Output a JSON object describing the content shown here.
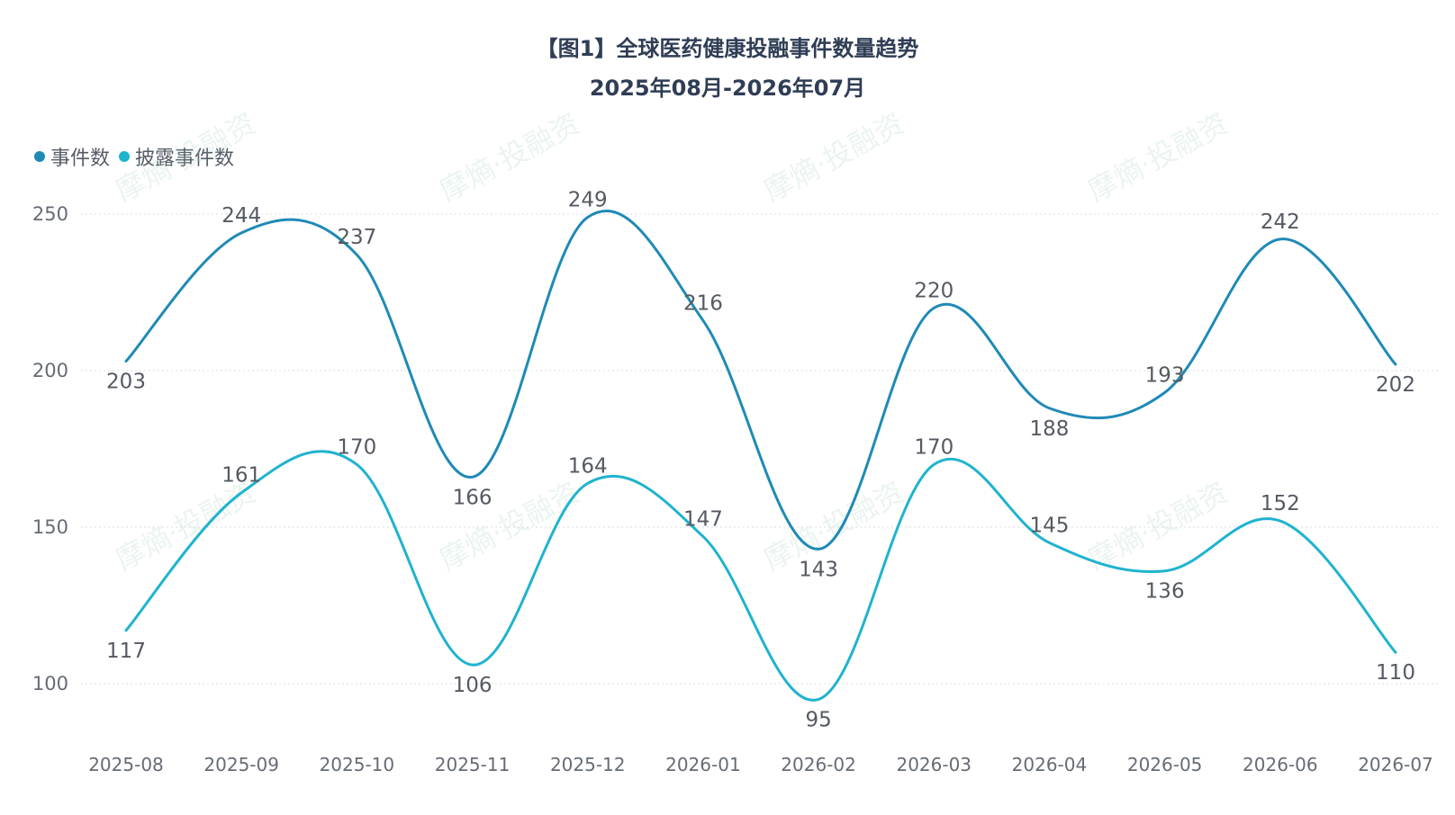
{
  "chart_data": {
    "type": "line",
    "title": "【图1】全球医药健康投融事件数量趋势",
    "subtitle": "2025年08月-2026年07月",
    "xlabel": "",
    "ylabel": "",
    "categories": [
      "2025-08",
      "2025-09",
      "2025-10",
      "2025-11",
      "2025-12",
      "2026-01",
      "2026-02",
      "2026-03",
      "2026-04",
      "2026-05",
      "2026-06",
      "2026-07"
    ],
    "yticks": [
      100,
      150,
      200,
      250
    ],
    "ylim": [
      80,
      260
    ],
    "grid": "horizontal dotted",
    "legend_position": "top-left",
    "series": [
      {
        "name": "事件数",
        "color": "#1f8ab6",
        "values": [
          203,
          244,
          237,
          166,
          249,
          216,
          143,
          220,
          188,
          193,
          242,
          202
        ]
      },
      {
        "name": "披露事件数",
        "color": "#1fb3cf",
        "values": [
          117,
          161,
          170,
          106,
          164,
          147,
          95,
          170,
          145,
          136,
          152,
          110
        ]
      }
    ]
  },
  "watermark_text": "摩熵·投融资"
}
